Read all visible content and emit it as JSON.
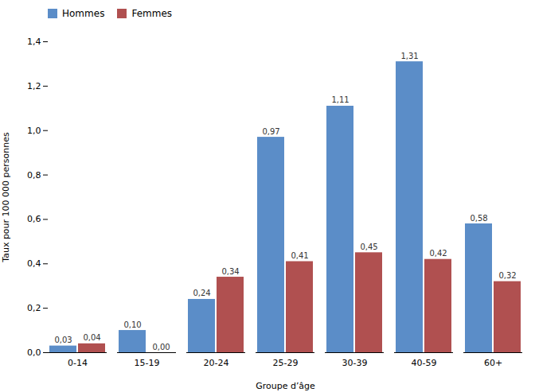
{
  "chart_data": {
    "type": "bar",
    "categories": [
      "0-14",
      "15-19",
      "20-24",
      "25-29",
      "30-39",
      "40-59",
      "60+"
    ],
    "series": [
      {
        "name": "Hommes",
        "color": "#5B8DC8",
        "values": [
          0.03,
          0.1,
          0.24,
          0.97,
          1.11,
          1.31,
          0.58
        ],
        "value_labels": [
          "0,03",
          "0,10",
          "0,24",
          "0,97",
          "1,11",
          "1,31",
          "0,58"
        ]
      },
      {
        "name": "Femmes",
        "color": "#B05050",
        "values": [
          0.04,
          0.0,
          0.34,
          0.41,
          0.45,
          0.42,
          0.32
        ],
        "value_labels": [
          "0,04",
          "0,00",
          "0,34",
          "0,41",
          "0,45",
          "0,42",
          "0,32"
        ]
      }
    ],
    "xlabel": "Groupe d’âge",
    "ylabel": "Taux pour 100 000 personnes",
    "ylim": [
      0,
      1.4
    ],
    "yticks": [
      {
        "value": 0.0,
        "label": "0,0"
      },
      {
        "value": 0.2,
        "label": "0,2"
      },
      {
        "value": 0.4,
        "label": "0,4"
      },
      {
        "value": 0.6,
        "label": "0,6"
      },
      {
        "value": 0.8,
        "label": "0,8"
      },
      {
        "value": 1.0,
        "label": "1,0"
      },
      {
        "value": 1.2,
        "label": "1,2"
      },
      {
        "value": 1.4,
        "label": "1,4"
      }
    ],
    "data_labels": true,
    "grid": false,
    "legend": "upper left"
  }
}
